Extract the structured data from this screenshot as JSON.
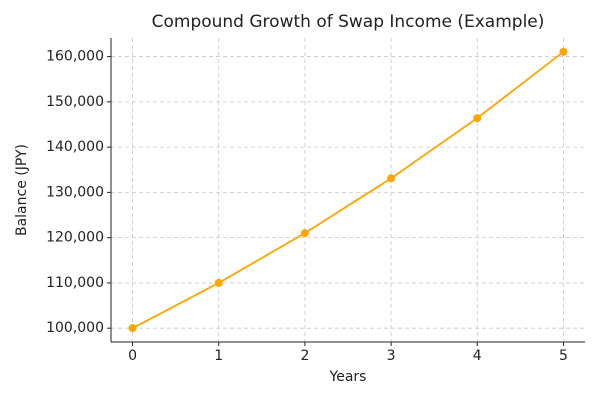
{
  "chart_data": {
    "type": "line",
    "title": "Compound Growth of Swap Income (Example)",
    "x_label": "Years",
    "y_label": "Balance (JPY)",
    "x": [
      0,
      1,
      2,
      3,
      4,
      5
    ],
    "series": [
      {
        "name": "Balance",
        "color": "#ffa500",
        "values": [
          100000,
          110000,
          121000,
          133100,
          146410,
          161051
        ]
      }
    ],
    "xlim": [
      -0.25,
      5.25
    ],
    "xticks": [
      0,
      1,
      2,
      3,
      4,
      5
    ],
    "ylim": [
      96947,
      164104
    ],
    "yticks": [
      {
        "value": 100000,
        "label": "100,000"
      },
      {
        "value": 110000,
        "label": "110,000"
      },
      {
        "value": 120000,
        "label": "120,000"
      },
      {
        "value": 130000,
        "label": "130,000"
      },
      {
        "value": 140000,
        "label": "140,000"
      },
      {
        "value": 150000,
        "label": "150,000"
      },
      {
        "value": 160000,
        "label": "160,000"
      }
    ],
    "grid": true,
    "markers": true
  }
}
